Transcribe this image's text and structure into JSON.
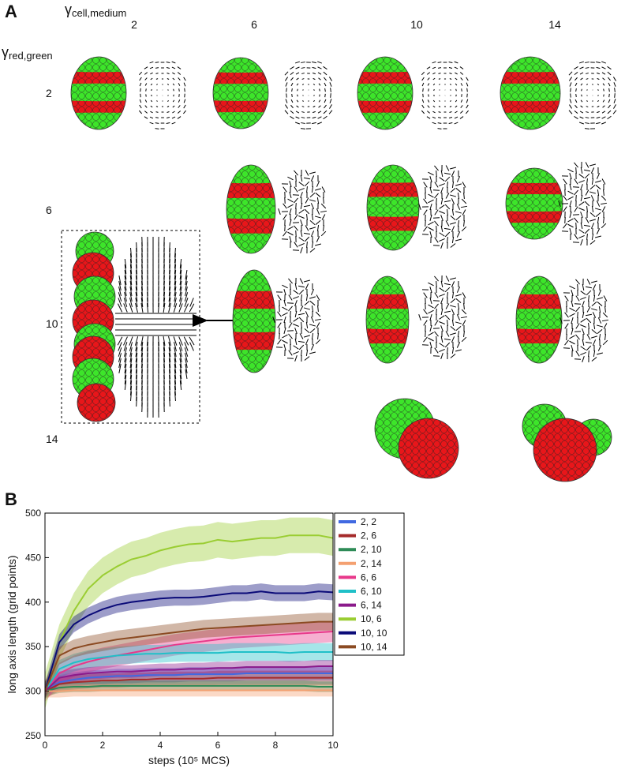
{
  "panel_a": {
    "panel_label": "A",
    "column_title": {
      "symbol": "γ",
      "subscript": "cell,medium"
    },
    "columns": [
      "2",
      "6",
      "10",
      "14"
    ],
    "row_title": {
      "symbol": "γ",
      "subscript": "red,green"
    },
    "rows": [
      "2",
      "6",
      "10",
      "14"
    ]
  },
  "panel_b": {
    "panel_label": "B"
  },
  "chart_data": {
    "type": "line",
    "xlabel": "steps (10⁵ MCS)",
    "ylabel": "long axis length (grid points)",
    "xlim": [
      0,
      10
    ],
    "ylim": [
      250,
      500
    ],
    "xticks": [
      0,
      2,
      4,
      6,
      8,
      10
    ],
    "yticks": [
      250,
      300,
      350,
      400,
      450,
      500
    ],
    "legend": "outside-right",
    "x": [
      0,
      0.5,
      1,
      1.5,
      2,
      2.5,
      3,
      3.5,
      4,
      4.5,
      5,
      5.5,
      6,
      6.5,
      7,
      7.5,
      8,
      8.5,
      9,
      9.5,
      10
    ],
    "series": [
      {
        "name": "2, 2",
        "color": "#4169e1",
        "error": 8,
        "values": [
          300,
          310,
          313,
          315,
          316,
          317,
          317,
          318,
          318,
          318,
          319,
          319,
          319,
          319,
          320,
          320,
          320,
          320,
          320,
          320,
          320
        ]
      },
      {
        "name": "2, 6",
        "color": "#a52a2a",
        "error": 8,
        "values": [
          300,
          308,
          310,
          311,
          312,
          312,
          313,
          313,
          314,
          314,
          314,
          314,
          315,
          315,
          315,
          315,
          315,
          315,
          315,
          315,
          315
        ]
      },
      {
        "name": "2, 10",
        "color": "#2e8b57",
        "error": 6,
        "values": [
          300,
          304,
          305,
          305,
          306,
          306,
          306,
          306,
          306,
          306,
          306,
          306,
          306,
          306,
          306,
          306,
          306,
          306,
          306,
          305,
          305
        ]
      },
      {
        "name": "2, 14",
        "color": "#f4a070",
        "error": 7,
        "values": [
          300,
          300,
          301,
          301,
          301,
          301,
          301,
          301,
          301,
          301,
          301,
          301,
          301,
          301,
          301,
          301,
          301,
          301,
          301,
          301,
          301
        ]
      },
      {
        "name": "6, 6",
        "color": "#e8388a",
        "error": 12,
        "values": [
          300,
          320,
          328,
          333,
          337,
          340,
          343,
          346,
          349,
          352,
          354,
          356,
          358,
          360,
          361,
          362,
          363,
          364,
          365,
          366,
          367
        ]
      },
      {
        "name": "6, 10",
        "color": "#20c0c8",
        "error": 10,
        "values": [
          300,
          325,
          332,
          336,
          338,
          340,
          341,
          342,
          342,
          343,
          343,
          343,
          343,
          344,
          344,
          344,
          344,
          343,
          344,
          344,
          344
        ]
      },
      {
        "name": "6, 14",
        "color": "#8b1a8b",
        "error": 7,
        "values": [
          300,
          315,
          318,
          320,
          321,
          322,
          322,
          323,
          324,
          324,
          325,
          325,
          326,
          326,
          327,
          327,
          327,
          327,
          327,
          328,
          328
        ]
      },
      {
        "name": "10, 6",
        "color": "#9acd32",
        "error": 20,
        "values": [
          300,
          355,
          390,
          415,
          430,
          440,
          448,
          452,
          458,
          462,
          465,
          466,
          470,
          468,
          470,
          472,
          472,
          475,
          475,
          475,
          472
        ]
      },
      {
        "name": "10, 10",
        "color": "#0a0a78",
        "error": 9,
        "values": [
          300,
          355,
          375,
          385,
          392,
          397,
          400,
          402,
          404,
          405,
          405,
          406,
          408,
          410,
          410,
          412,
          410,
          410,
          410,
          412,
          411
        ]
      },
      {
        "name": "10, 14",
        "color": "#8b4a22",
        "error": 10,
        "values": [
          300,
          340,
          348,
          352,
          355,
          358,
          360,
          362,
          364,
          366,
          368,
          370,
          371,
          372,
          373,
          374,
          375,
          376,
          377,
          378,
          378
        ]
      }
    ]
  }
}
